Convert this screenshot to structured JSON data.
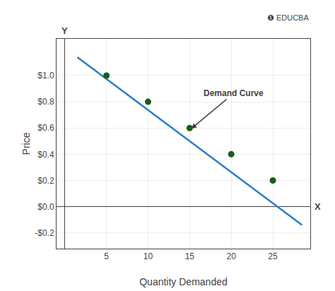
{
  "chart_data": {
    "type": "scatter",
    "xlabel": "Quantity Demanded",
    "ylabel": "Price",
    "series": [
      {
        "type": "line",
        "x": [
          1.5,
          28.5
        ],
        "values": [
          1.14,
          -0.14
        ],
        "color": "#2a7dc9"
      },
      {
        "type": "scatter",
        "x": [
          5,
          10,
          15,
          20,
          25
        ],
        "values": [
          1.0,
          0.8,
          0.6,
          0.4,
          0.2
        ],
        "color": "#1a5c1a"
      }
    ],
    "xlim": [
      -1,
      29.5
    ],
    "ylim": [
      -0.32,
      1.28
    ],
    "xticks": [
      5,
      10,
      15,
      20,
      25
    ],
    "yticks": [
      {
        "value": -0.2,
        "label": "-$0.2"
      },
      {
        "value": 0,
        "label": "$0.0"
      },
      {
        "value": 0.2,
        "label": "$0.2"
      },
      {
        "value": 0.4,
        "label": "$0.4"
      },
      {
        "value": 0.6,
        "label": "$0.6"
      },
      {
        "value": 0.8,
        "label": "$0.8"
      },
      {
        "value": 1.0,
        "label": "$1.0"
      }
    ],
    "grid": true,
    "annotations": [
      {
        "text": "Demand Curve",
        "x": 15.2,
        "y": 0.595
      }
    ],
    "x_tip_label": "X",
    "y_tip_label": "Y",
    "logo": "❶ EDUCBA"
  }
}
